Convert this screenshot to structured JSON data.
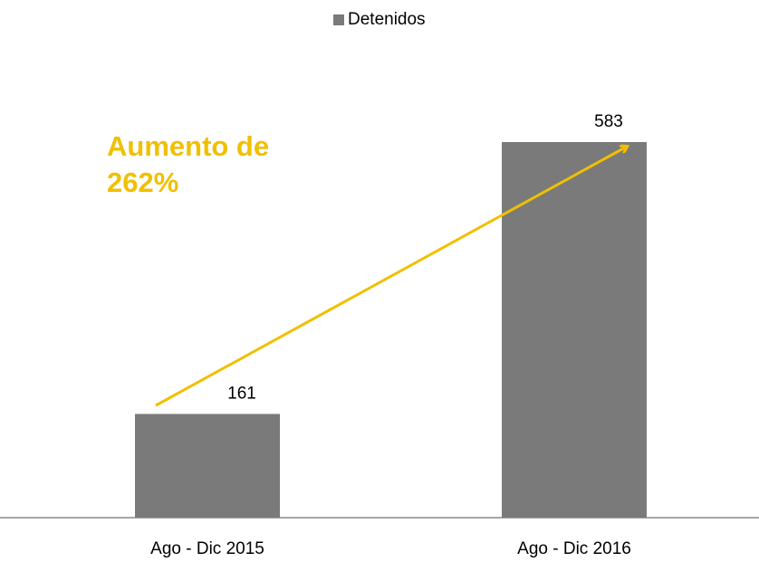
{
  "chart_data": {
    "type": "bar",
    "categories": [
      "Ago - Dic  2015",
      "Ago - Dic  2016"
    ],
    "series": [
      {
        "name": "Detenidos",
        "color": "#7a7a7a",
        "values": [
          161,
          583
        ]
      }
    ],
    "annotation": [
      "Aumento de",
      "262%"
    ],
    "annotation_color": "#f0c000"
  }
}
